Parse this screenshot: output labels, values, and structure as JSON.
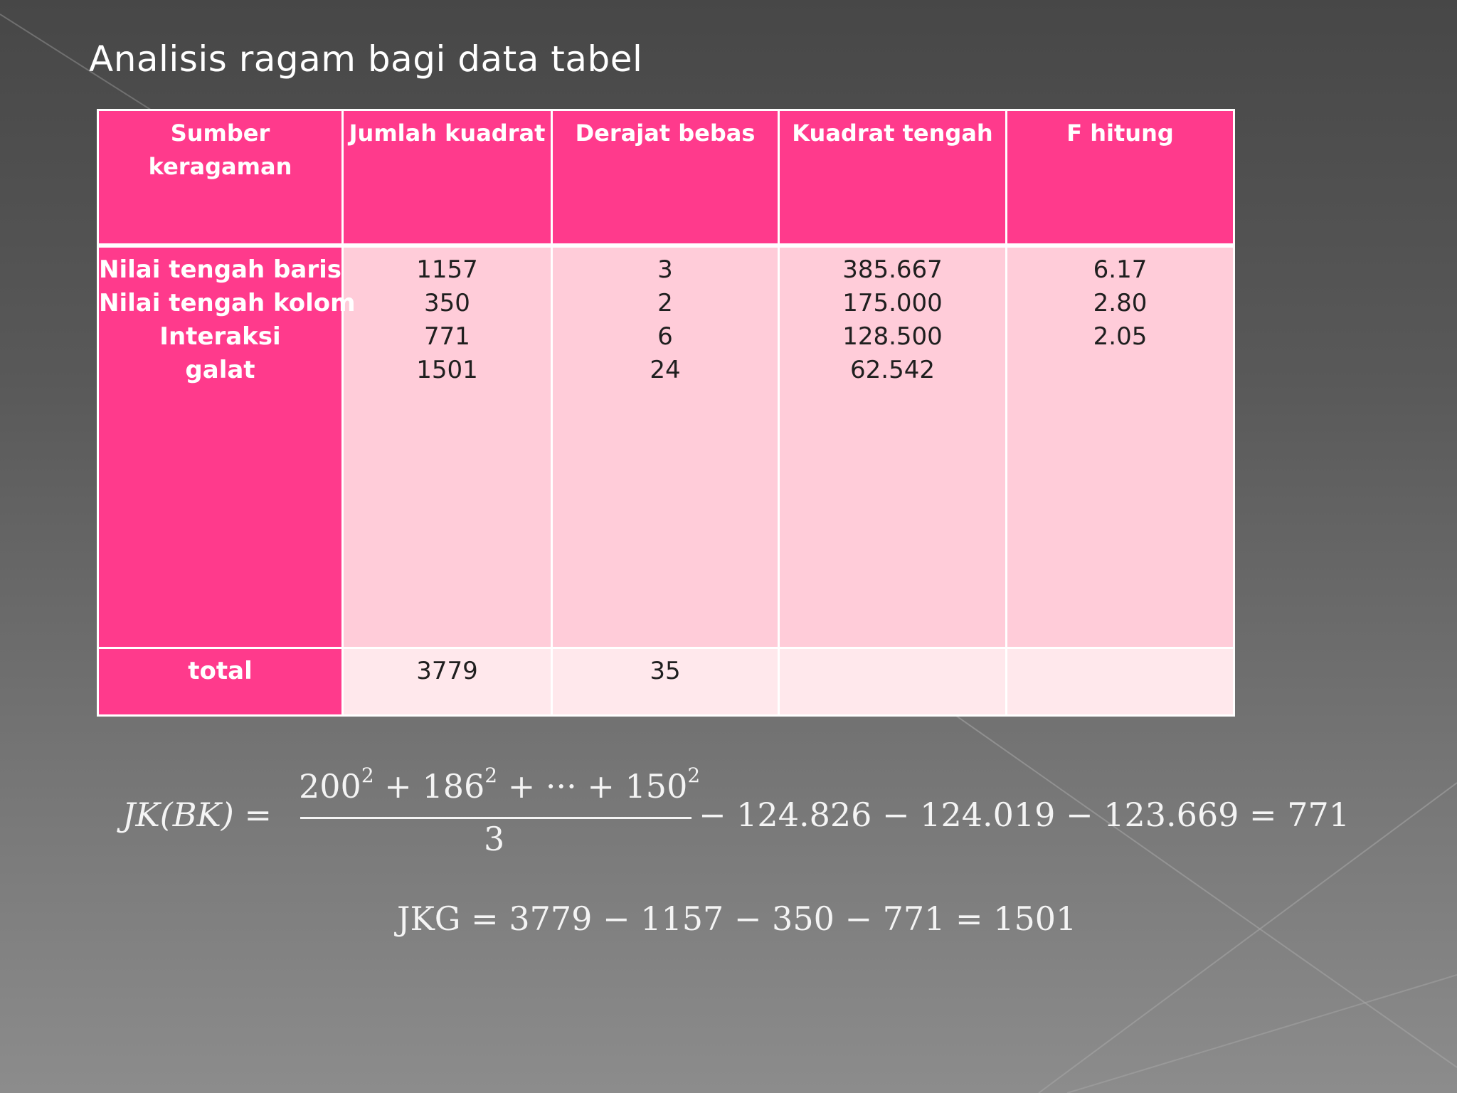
{
  "slide": {
    "title": "Analisis ragam bagi data tabel"
  },
  "table": {
    "headers": {
      "source": "Sumber keragaman",
      "source_line1": "Sumber",
      "source_line2": "keragaman",
      "sum_squares": "Jumlah kuadrat",
      "df": "Derajat bebas",
      "mean_square": "Kuadrat tengah",
      "f_value": "F hitung"
    },
    "rows": [
      {
        "source": "Nilai tengah baris",
        "ss": "1157",
        "df": "3",
        "ms": "385.667",
        "f": "6.17"
      },
      {
        "source": "Nilai tengah kolom",
        "ss": "350",
        "df": "2",
        "ms": "175.000",
        "f": "2.80"
      },
      {
        "source": "Interaksi",
        "ss": "771",
        "df": "6",
        "ms": "128.500",
        "f": "2.05"
      },
      {
        "source": "galat",
        "ss": "1501",
        "df": "24",
        "ms": "62.542",
        "f": ""
      }
    ],
    "total": {
      "source": "total",
      "ss": "3779",
      "df": "35",
      "ms": "",
      "f": ""
    }
  },
  "formulas": {
    "jk_bk": {
      "lhs": "JK(BK) =",
      "numerator_t1": "200",
      "numerator_t2": "186",
      "numerator_t3": "150",
      "exp": "2",
      "plus": "+",
      "dots": "+ ··· +",
      "denominator": "3",
      "rest": "−  124.826 − 124.019 − 123.669 = 771"
    },
    "jkg": "JKG = 3779 − 1157 − 350 − 771 = 1501"
  },
  "colors": {
    "header_pink": "#ff3a8c",
    "cell_pink": "#ffccd9",
    "total_cell_pink": "#ffe8ec"
  }
}
